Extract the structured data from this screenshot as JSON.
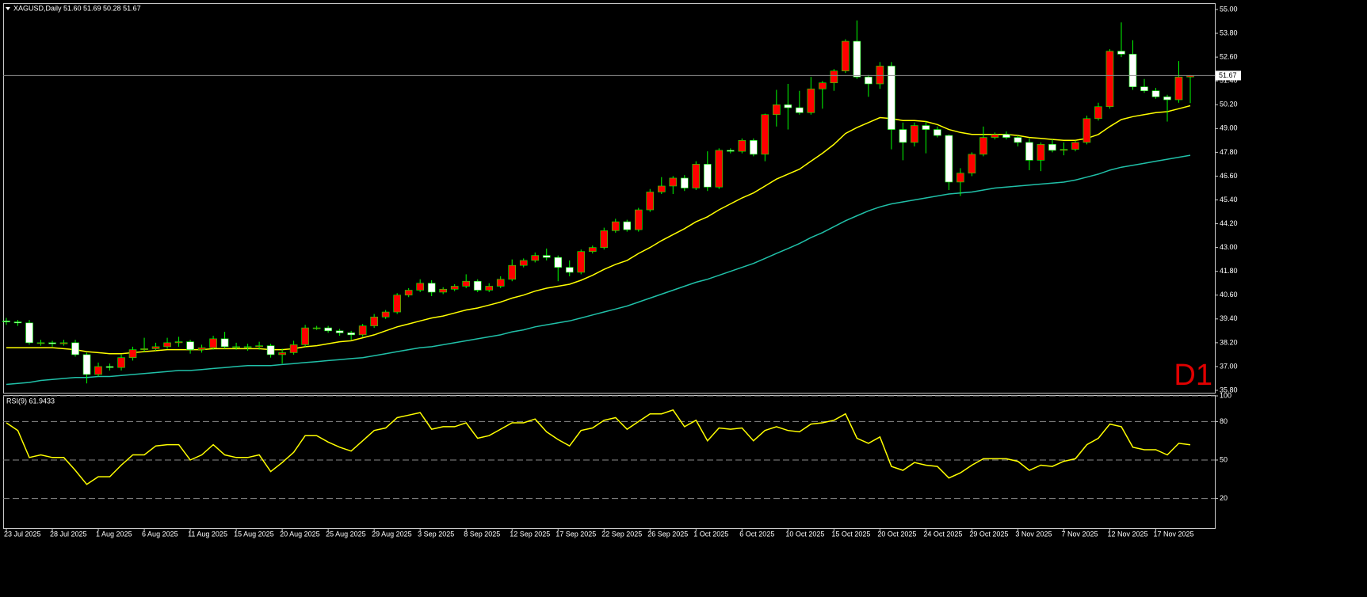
{
  "chart_data": [
    {
      "type": "candlestick",
      "title": "XAGUSD,Daily",
      "subtitle": "51.60 51.69 50.28 51.67",
      "timeframe_label": "D1",
      "last_price": 51.67,
      "up_color": "#ff0000",
      "down_color": "#ffffff",
      "wick_color": "#00ff00",
      "categories": [
        "23 Jul 2025",
        null,
        null,
        null,
        "28 Jul 2025",
        null,
        null,
        null,
        "1 Aug 2025",
        null,
        null,
        null,
        "6 Aug 2025",
        null,
        null,
        null,
        "11 Aug 2025",
        null,
        null,
        null,
        "15 Aug 2025",
        null,
        null,
        null,
        "20 Aug 2025",
        null,
        null,
        null,
        "25 Aug 2025",
        null,
        null,
        null,
        "29 Aug 2025",
        null,
        null,
        null,
        "3 Sep 2025",
        null,
        null,
        null,
        "8 Sep 2025",
        null,
        null,
        null,
        "12 Sep 2025",
        null,
        null,
        null,
        "17 Sep 2025",
        null,
        null,
        null,
        "22 Sep 2025",
        null,
        null,
        null,
        "26 Sep 2025",
        null,
        null,
        null,
        "1 Oct 2025",
        null,
        null,
        null,
        "6 Oct 2025",
        null,
        null,
        null,
        "10 Oct 2025",
        null,
        null,
        null,
        "15 Oct 2025",
        null,
        null,
        null,
        "20 Oct 2025",
        null,
        null,
        null,
        "24 Oct 2025",
        null,
        null,
        null,
        "29 Oct 2025",
        null,
        null,
        null,
        "3 Nov 2025",
        null,
        null,
        null,
        "7 Nov 2025",
        null,
        null,
        null,
        "12 Nov 2025",
        null,
        null,
        null,
        "17 Nov 2025",
        null,
        null,
        null
      ],
      "open": [
        39.3,
        39.25,
        39.2,
        38.2,
        38.2,
        38.15,
        38.2,
        37.6,
        36.6,
        37.0,
        36.95,
        37.45,
        37.85,
        37.9,
        38.0,
        38.2,
        38.25,
        37.85,
        37.95,
        38.4,
        38.0,
        38.0,
        38.0,
        38.05,
        37.6,
        37.7,
        38.1,
        38.95,
        38.95,
        38.8,
        38.7,
        38.6,
        39.05,
        39.5,
        39.75,
        40.6,
        40.85,
        41.2,
        40.75,
        40.9,
        41.05,
        41.3,
        40.85,
        41.05,
        41.4,
        42.1,
        42.35,
        42.6,
        42.5,
        42.0,
        41.75,
        42.8,
        43.0,
        43.85,
        44.3,
        43.9,
        44.9,
        45.8,
        46.1,
        46.5,
        46.0,
        47.2,
        46.05,
        47.9,
        47.85,
        48.4,
        47.7,
        49.7,
        50.2,
        50.05,
        49.8,
        51.0,
        51.3,
        51.9,
        53.4,
        51.6,
        51.25,
        52.15,
        48.95,
        48.3,
        49.15,
        48.95,
        48.65,
        46.3,
        46.75,
        47.7,
        48.55,
        48.7,
        48.55,
        48.3,
        47.4,
        48.2,
        47.9,
        47.95,
        48.3,
        49.5,
        50.1,
        52.9,
        52.75,
        51.1,
        50.9,
        50.6,
        50.45,
        51.6
      ],
      "high": [
        39.45,
        39.35,
        39.35,
        38.35,
        38.3,
        38.35,
        38.35,
        37.7,
        37.2,
        37.15,
        37.6,
        38.0,
        38.45,
        38.2,
        38.45,
        38.5,
        38.35,
        38.1,
        38.55,
        38.75,
        38.2,
        38.15,
        38.25,
        38.15,
        37.9,
        38.3,
        39.1,
        39.05,
        39.05,
        38.9,
        38.8,
        39.15,
        39.65,
        39.85,
        40.7,
        40.95,
        41.4,
        41.35,
        41.0,
        41.15,
        41.65,
        41.4,
        41.2,
        41.55,
        42.4,
        42.45,
        42.75,
        42.95,
        42.6,
        42.35,
        42.9,
        43.1,
        44.0,
        44.45,
        44.4,
        45.0,
        45.95,
        46.55,
        46.6,
        46.65,
        47.35,
        47.85,
        48.0,
        48.0,
        48.5,
        48.5,
        49.75,
        50.95,
        51.25,
        50.9,
        51.6,
        51.4,
        52.0,
        53.5,
        54.45,
        51.7,
        52.35,
        52.35,
        49.3,
        49.3,
        49.35,
        49.1,
        48.7,
        47.0,
        47.8,
        49.1,
        48.8,
        48.85,
        48.65,
        48.5,
        48.3,
        48.45,
        48.3,
        48.4,
        49.65,
        50.3,
        53.0,
        54.35,
        53.45,
        51.5,
        51.05,
        50.7,
        52.4,
        51.69
      ],
      "low": [
        39.1,
        39.05,
        38.1,
        38.05,
        38.0,
        38.05,
        37.5,
        36.15,
        36.5,
        36.8,
        36.8,
        37.3,
        37.75,
        37.8,
        37.9,
        38.0,
        37.65,
        37.7,
        37.85,
        37.9,
        37.85,
        37.8,
        37.85,
        37.45,
        37.15,
        37.6,
        38.0,
        38.85,
        38.7,
        38.55,
        38.35,
        38.5,
        38.95,
        39.4,
        39.65,
        40.5,
        40.75,
        40.55,
        40.65,
        40.8,
        40.95,
        40.75,
        40.75,
        40.95,
        41.3,
        42.0,
        42.25,
        42.35,
        41.3,
        41.55,
        41.65,
        42.7,
        42.9,
        43.75,
        43.8,
        43.8,
        44.8,
        45.7,
        45.7,
        45.85,
        45.9,
        45.85,
        45.95,
        47.75,
        47.75,
        47.6,
        47.35,
        49.1,
        48.95,
        49.7,
        49.7,
        50.0,
        50.9,
        51.8,
        51.5,
        50.6,
        51.0,
        47.95,
        47.4,
        48.1,
        47.75,
        48.55,
        45.9,
        45.6,
        46.6,
        47.6,
        48.45,
        48.45,
        48.1,
        46.9,
        46.85,
        47.8,
        47.65,
        47.85,
        48.2,
        49.4,
        50.0,
        52.6,
        50.95,
        50.8,
        50.5,
        49.35,
        50.3,
        50.28
      ],
      "close": [
        39.25,
        39.2,
        38.2,
        38.2,
        38.15,
        38.2,
        37.6,
        36.6,
        37.0,
        36.95,
        37.45,
        37.85,
        37.9,
        38.0,
        38.2,
        38.25,
        37.85,
        37.95,
        38.4,
        38.0,
        38.0,
        38.0,
        38.05,
        37.6,
        37.7,
        38.1,
        38.95,
        38.95,
        38.8,
        38.7,
        38.6,
        39.05,
        39.5,
        39.75,
        40.6,
        40.85,
        41.2,
        40.75,
        40.9,
        41.05,
        41.3,
        40.85,
        41.05,
        41.4,
        42.1,
        42.35,
        42.6,
        42.5,
        42.0,
        41.75,
        42.8,
        43.0,
        43.85,
        44.3,
        43.9,
        44.9,
        45.8,
        46.1,
        46.5,
        46.0,
        47.2,
        46.05,
        47.9,
        47.85,
        48.4,
        47.7,
        49.7,
        50.2,
        50.05,
        49.8,
        51.0,
        51.3,
        51.9,
        53.4,
        51.6,
        51.25,
        52.15,
        48.95,
        48.3,
        49.15,
        48.95,
        48.65,
        46.3,
        46.75,
        47.7,
        48.55,
        48.7,
        48.55,
        48.3,
        47.4,
        48.2,
        47.9,
        47.95,
        48.3,
        49.5,
        50.1,
        52.9,
        52.75,
        51.1,
        50.9,
        50.6,
        50.45,
        51.6,
        51.67
      ],
      "moving_averages": [
        {
          "color": "#ffff00",
          "values": [
            37.95,
            37.95,
            37.95,
            37.95,
            37.95,
            37.9,
            37.85,
            37.75,
            37.7,
            37.65,
            37.65,
            37.7,
            37.75,
            37.8,
            37.85,
            37.85,
            37.85,
            37.85,
            37.9,
            37.9,
            37.9,
            37.9,
            37.9,
            37.85,
            37.85,
            37.9,
            38.0,
            38.05,
            38.15,
            38.25,
            38.3,
            38.45,
            38.6,
            38.8,
            39.0,
            39.15,
            39.3,
            39.45,
            39.55,
            39.7,
            39.85,
            39.95,
            40.1,
            40.25,
            40.45,
            40.6,
            40.8,
            40.95,
            41.05,
            41.15,
            41.35,
            41.6,
            41.9,
            42.15,
            42.35,
            42.7,
            43.0,
            43.35,
            43.65,
            43.95,
            44.3,
            44.55,
            44.9,
            45.2,
            45.5,
            45.75,
            46.1,
            46.45,
            46.7,
            46.95,
            47.35,
            47.75,
            48.2,
            48.75,
            49.05,
            49.3,
            49.55,
            49.5,
            49.4,
            49.4,
            49.35,
            49.2,
            48.95,
            48.8,
            48.7,
            48.7,
            48.7,
            48.7,
            48.65,
            48.55,
            48.5,
            48.45,
            48.4,
            48.4,
            48.5,
            48.7,
            49.1,
            49.45,
            49.6,
            49.7,
            49.8,
            49.85,
            50.0,
            50.15
          ]
        },
        {
          "color": "#20c0a8",
          "values": [
            36.1,
            36.15,
            36.2,
            36.3,
            36.35,
            36.4,
            36.45,
            36.45,
            36.5,
            36.5,
            36.55,
            36.6,
            36.65,
            36.7,
            36.75,
            36.8,
            36.8,
            36.85,
            36.9,
            36.95,
            37.0,
            37.05,
            37.05,
            37.05,
            37.1,
            37.15,
            37.2,
            37.25,
            37.3,
            37.35,
            37.4,
            37.45,
            37.55,
            37.65,
            37.75,
            37.85,
            37.95,
            38.0,
            38.1,
            38.2,
            38.3,
            38.4,
            38.5,
            38.6,
            38.75,
            38.85,
            39.0,
            39.1,
            39.2,
            39.3,
            39.45,
            39.6,
            39.75,
            39.9,
            40.05,
            40.25,
            40.45,
            40.65,
            40.85,
            41.05,
            41.25,
            41.4,
            41.6,
            41.8,
            42.0,
            42.2,
            42.45,
            42.7,
            42.95,
            43.2,
            43.5,
            43.75,
            44.05,
            44.35,
            44.6,
            44.85,
            45.05,
            45.2,
            45.3,
            45.4,
            45.5,
            45.6,
            45.7,
            45.75,
            45.8,
            45.9,
            46.0,
            46.05,
            46.1,
            46.15,
            46.2,
            46.25,
            46.3,
            46.4,
            46.55,
            46.7,
            46.9,
            47.05,
            47.15,
            47.25,
            47.35,
            47.45,
            47.55,
            47.65
          ]
        }
      ],
      "ylim": [
        35.8,
        55.0
      ],
      "yticks": [
        {
          "value": 55.0,
          "label": "55.00"
        },
        {
          "value": 53.8,
          "label": "53.80"
        },
        {
          "value": 52.6,
          "label": "52.60"
        },
        {
          "value": 51.4,
          "label": "51.40"
        },
        {
          "value": 50.2,
          "label": "50.20"
        },
        {
          "value": 49.0,
          "label": "49.00"
        },
        {
          "value": 47.8,
          "label": "47.80"
        },
        {
          "value": 46.6,
          "label": "46.60"
        },
        {
          "value": 45.4,
          "label": "45.40"
        },
        {
          "value": 44.2,
          "label": "44.20"
        },
        {
          "value": 43.0,
          "label": "43.00"
        },
        {
          "value": 41.8,
          "label": "41.80"
        },
        {
          "value": 40.6,
          "label": "40.60"
        },
        {
          "value": 39.4,
          "label": "39.40"
        },
        {
          "value": 38.2,
          "label": "38.20"
        },
        {
          "value": 37.0,
          "label": "37.00"
        },
        {
          "value": 35.8,
          "label": "35.80"
        }
      ],
      "grid": false
    },
    {
      "type": "line",
      "title": "RSI(9) 61.9433",
      "color": "#ffff00",
      "values": [
        79,
        73,
        52,
        54,
        52,
        52,
        42,
        31,
        37,
        37,
        46,
        54,
        54,
        61,
        62,
        62,
        50,
        54,
        62,
        54,
        52,
        52,
        54,
        41,
        48,
        56,
        69,
        69,
        64,
        60,
        57,
        65,
        73,
        75,
        83,
        85,
        87,
        74,
        76,
        76,
        79,
        67,
        69,
        74,
        79,
        79,
        82,
        72,
        66,
        61,
        73,
        75,
        81,
        83,
        74,
        80,
        86,
        86,
        89,
        76,
        81,
        65,
        75,
        74,
        75,
        65,
        73,
        76,
        73,
        72,
        78,
        79,
        81,
        86,
        67,
        63,
        68,
        45,
        42,
        48,
        46,
        45,
        36,
        40,
        46,
        51,
        51,
        51,
        49,
        42,
        46,
        45,
        49,
        51,
        62,
        67,
        78,
        76,
        60,
        58,
        58,
        54,
        63,
        61.9433
      ],
      "ylim": [
        0,
        100
      ],
      "yticks": [
        20,
        50,
        80,
        100
      ],
      "grid": true,
      "grid_style": "dashed"
    }
  ]
}
